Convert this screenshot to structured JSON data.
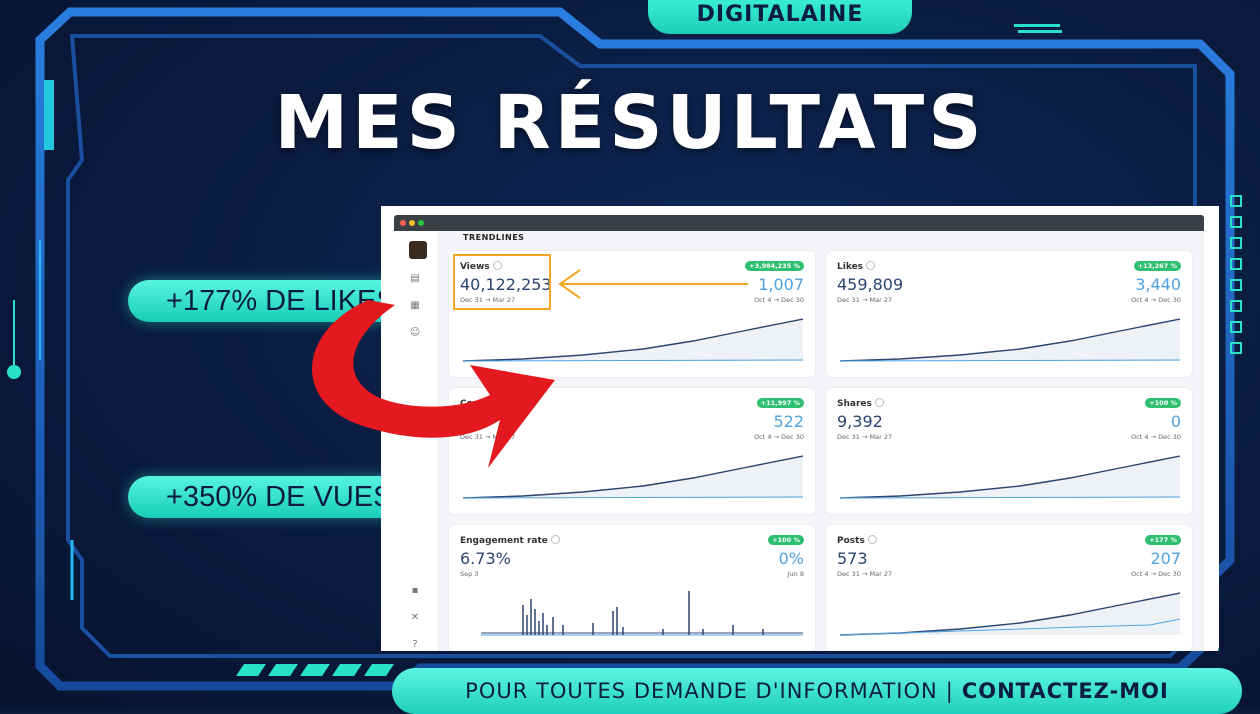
{
  "brand": "DIGITALAINE",
  "title": "MES RÉSULTATS",
  "stats": {
    "likes": "+177% DE LIKES",
    "views": "+350% DE VUES"
  },
  "footer": {
    "text": "POUR TOUTES DEMANDE D'INFORMATION",
    "separator": "|",
    "cta": "CONTACTEZ-MOI"
  },
  "dashboard": {
    "section": "TRENDLINES",
    "chat_badge": "2",
    "cards": [
      {
        "label": "Views",
        "value": "40,122,253",
        "range": "Dec 31 → Mar 27",
        "badge": "+3,984,235 %",
        "value2": "1,007",
        "range2": "Oct 4 → Dec 30"
      },
      {
        "label": "Likes",
        "value": "459,809",
        "range": "Dec 31 → Mar 27",
        "badge": "+13,267 %",
        "value2": "3,440",
        "range2": "Oct 4 → Dec 30"
      },
      {
        "label": "Comments",
        "value": "",
        "range": "Dec 31 → Mar 27",
        "badge": "+11,997 %",
        "value2": "522",
        "range2": "Oct 4 → Dec 30"
      },
      {
        "label": "Shares",
        "value": "9,392",
        "range": "Dec 31 → Mar 27",
        "badge": "+100 %",
        "value2": "0",
        "range2": "Oct 4 → Dec 30"
      },
      {
        "label": "Engagement rate",
        "value": "6.73%",
        "range": "Sep 3",
        "badge": "+100 %",
        "value2": "0%",
        "range2": "Jun 8"
      },
      {
        "label": "Posts",
        "value": "573",
        "range": "Dec 31 → Mar 27",
        "badge": "+177 %",
        "value2": "207",
        "range2": "Oct 4 → Dec 30"
      }
    ]
  },
  "colors": {
    "accent": "#29e0c9",
    "background": "#0b1d42",
    "frame": "#1e63c8",
    "arrow_red": "#e3191f",
    "highlight_orange": "#f5a623",
    "badge_green": "#2fbf71"
  }
}
